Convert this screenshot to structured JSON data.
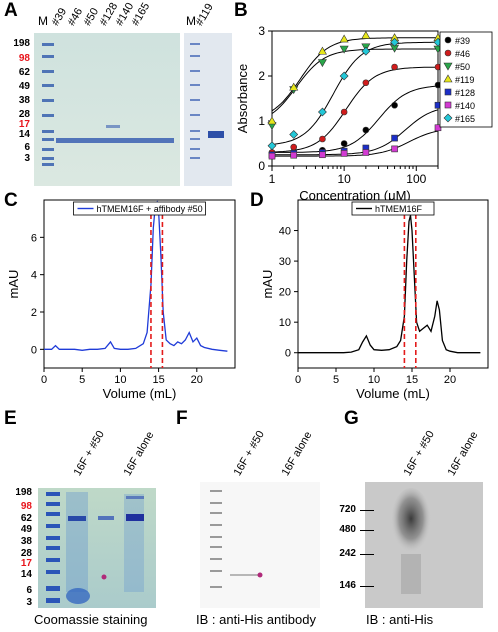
{
  "panels": {
    "A": "A",
    "B": "B",
    "C": "C",
    "D": "D",
    "E": "E",
    "F": "F",
    "G": "G"
  },
  "panel_a": {
    "lanes_main": [
      "M",
      "#39",
      "#46",
      "#50",
      "#128",
      "#140",
      "#165"
    ],
    "lanes_side": [
      "M",
      "#119"
    ],
    "markers": [
      {
        "label": "198",
        "color": "#000000"
      },
      {
        "label": "98",
        "color": "#e8141b"
      },
      {
        "label": "62",
        "color": "#000000"
      },
      {
        "label": "49",
        "color": "#000000"
      },
      {
        "label": "38",
        "color": "#000000"
      },
      {
        "label": "28",
        "color": "#000000"
      },
      {
        "label": "17",
        "color": "#e8141b"
      },
      {
        "label": "14",
        "color": "#000000"
      },
      {
        "label": "6",
        "color": "#000000"
      },
      {
        "label": "3",
        "color": "#000000"
      }
    ]
  },
  "panel_e": {
    "lanes": [
      "16F + #50",
      "16F alone"
    ],
    "markers": [
      {
        "label": "198",
        "color": "#000000"
      },
      {
        "label": "98",
        "color": "#e8141b"
      },
      {
        "label": "62",
        "color": "#000000"
      },
      {
        "label": "49",
        "color": "#000000"
      },
      {
        "label": "38",
        "color": "#000000"
      },
      {
        "label": "28",
        "color": "#000000"
      },
      {
        "label": "17",
        "color": "#e8141b"
      },
      {
        "label": "14",
        "color": "#000000"
      },
      {
        "label": "6",
        "color": "#000000"
      },
      {
        "label": "3",
        "color": "#000000"
      }
    ],
    "caption": "Coomassie staining"
  },
  "panel_f": {
    "lanes": [
      "16F + #50",
      "16F alone"
    ],
    "caption": "IB : anti-His antibody"
  },
  "panel_g": {
    "lanes": [
      "16F + #50",
      "16F alone"
    ],
    "markers": [
      "720",
      "480",
      "242",
      "146"
    ],
    "caption": "IB : anti-His"
  },
  "chart_data": [
    {
      "type": "scatter",
      "panel": "B",
      "xlabel": "Concentration (μM)",
      "ylabel": "Absorbance",
      "xscale": "log",
      "xlim": [
        1,
        200
      ],
      "ylim": [
        0,
        3
      ],
      "xticks": [
        "1",
        "10",
        "100"
      ],
      "yticks": [
        "0",
        "1",
        "2",
        "3"
      ],
      "legend_position": "top-right",
      "series": [
        {
          "name": "#39",
          "color": "#000000",
          "marker": "circle",
          "x": [
            1,
            2,
            5,
            10,
            20,
            50,
            200
          ],
          "y": [
            0.3,
            0.32,
            0.35,
            0.5,
            0.8,
            1.35,
            1.8
          ]
        },
        {
          "name": "#46",
          "color": "#d01c1c",
          "marker": "circle",
          "x": [
            1,
            2,
            5,
            10,
            20,
            50,
            200
          ],
          "y": [
            0.3,
            0.42,
            0.6,
            1.2,
            1.85,
            2.2,
            2.2
          ]
        },
        {
          "name": "#50",
          "color": "#2aa64a",
          "marker": "triangle-down",
          "x": [
            1,
            2,
            5,
            10,
            20,
            50,
            200
          ],
          "y": [
            0.9,
            1.7,
            2.3,
            2.6,
            2.65,
            2.62,
            2.6
          ]
        },
        {
          "name": "#119",
          "color": "#e6e61a",
          "marker": "triangle-up",
          "x": [
            1,
            2,
            5,
            10,
            20,
            50,
            200
          ],
          "y": [
            1.0,
            1.75,
            2.55,
            2.82,
            2.9,
            2.85,
            2.85
          ]
        },
        {
          "name": "#128",
          "color": "#1c2ec8",
          "marker": "square",
          "x": [
            1,
            2,
            5,
            10,
            20,
            50,
            200
          ],
          "y": [
            0.25,
            0.28,
            0.3,
            0.33,
            0.4,
            0.62,
            1.35
          ]
        },
        {
          "name": "#140",
          "color": "#d23bd2",
          "marker": "square",
          "x": [
            1,
            2,
            5,
            10,
            20,
            50,
            200
          ],
          "y": [
            0.22,
            0.24,
            0.25,
            0.28,
            0.3,
            0.38,
            0.85
          ]
        },
        {
          "name": "#165",
          "color": "#23c8d8",
          "marker": "diamond",
          "x": [
            1,
            2,
            5,
            10,
            20,
            50,
            200
          ],
          "y": [
            0.45,
            0.7,
            1.2,
            2.0,
            2.55,
            2.75,
            2.75
          ]
        }
      ]
    },
    {
      "type": "line",
      "panel": "C",
      "xlabel": "Volume (mL)",
      "ylabel": "mAU",
      "xlim": [
        0,
        25
      ],
      "ylim": [
        -1,
        8
      ],
      "xticks": [
        "0",
        "5",
        "10",
        "15",
        "20"
      ],
      "yticks": [
        "0",
        "2",
        "4",
        "6"
      ],
      "legend_position": "top",
      "highlight_range": [
        14,
        15.5
      ],
      "series": [
        {
          "name": "hTMEM16F + affibody #50",
          "color": "#1f3bd8",
          "x": [
            0,
            1,
            1.5,
            2,
            3,
            4,
            5,
            6,
            7,
            8,
            8.7,
            9.2,
            10,
            11,
            12,
            13,
            13.5,
            14,
            14.3,
            14.6,
            14.8,
            15,
            15.3,
            15.6,
            16,
            16.5,
            17,
            17.5,
            18,
            18.5,
            19,
            19.5,
            20,
            20.5,
            21,
            22,
            23,
            24
          ],
          "y": [
            0,
            0,
            0.2,
            0,
            0,
            0,
            -0.05,
            0,
            0,
            0.05,
            0.4,
            0.05,
            0,
            0,
            0.05,
            0.3,
            0.9,
            3.5,
            6.5,
            7.8,
            7.9,
            7.4,
            5,
            2,
            0.5,
            0.3,
            0.2,
            0.4,
            0.3,
            0.5,
            0.9,
            0.4,
            0.6,
            0.2,
            0.1,
            0,
            -0.05,
            -0.1
          ]
        }
      ]
    },
    {
      "type": "line",
      "panel": "D",
      "xlabel": "Volume (mL)",
      "ylabel": "mAU",
      "xlim": [
        0,
        25
      ],
      "ylim": [
        -5,
        50
      ],
      "xticks": [
        "0",
        "5",
        "10",
        "15",
        "20"
      ],
      "yticks": [
        "0",
        "10",
        "20",
        "30",
        "40"
      ],
      "legend_position": "top",
      "highlight_range": [
        14,
        15.5
      ],
      "series": [
        {
          "name": "hTMEM16F",
          "color": "#000000",
          "x": [
            0,
            2,
            4,
            6,
            7,
            8,
            8.5,
            9,
            9.5,
            10,
            11,
            12,
            13,
            13.5,
            14,
            14.3,
            14.6,
            14.8,
            15,
            15.3,
            15.6,
            16,
            16.5,
            17,
            17.5,
            18,
            18.3,
            18.6,
            19,
            19.5,
            20,
            21,
            22,
            23,
            24
          ],
          "y": [
            0,
            0,
            0,
            0,
            0.2,
            1,
            3.5,
            5.5,
            2.5,
            1,
            0.8,
            1,
            2,
            4,
            12,
            30,
            43,
            45,
            40,
            25,
            10,
            7,
            8,
            9,
            7,
            12,
            17,
            14,
            4,
            1,
            0.5,
            0,
            0,
            0,
            0
          ]
        }
      ]
    }
  ]
}
